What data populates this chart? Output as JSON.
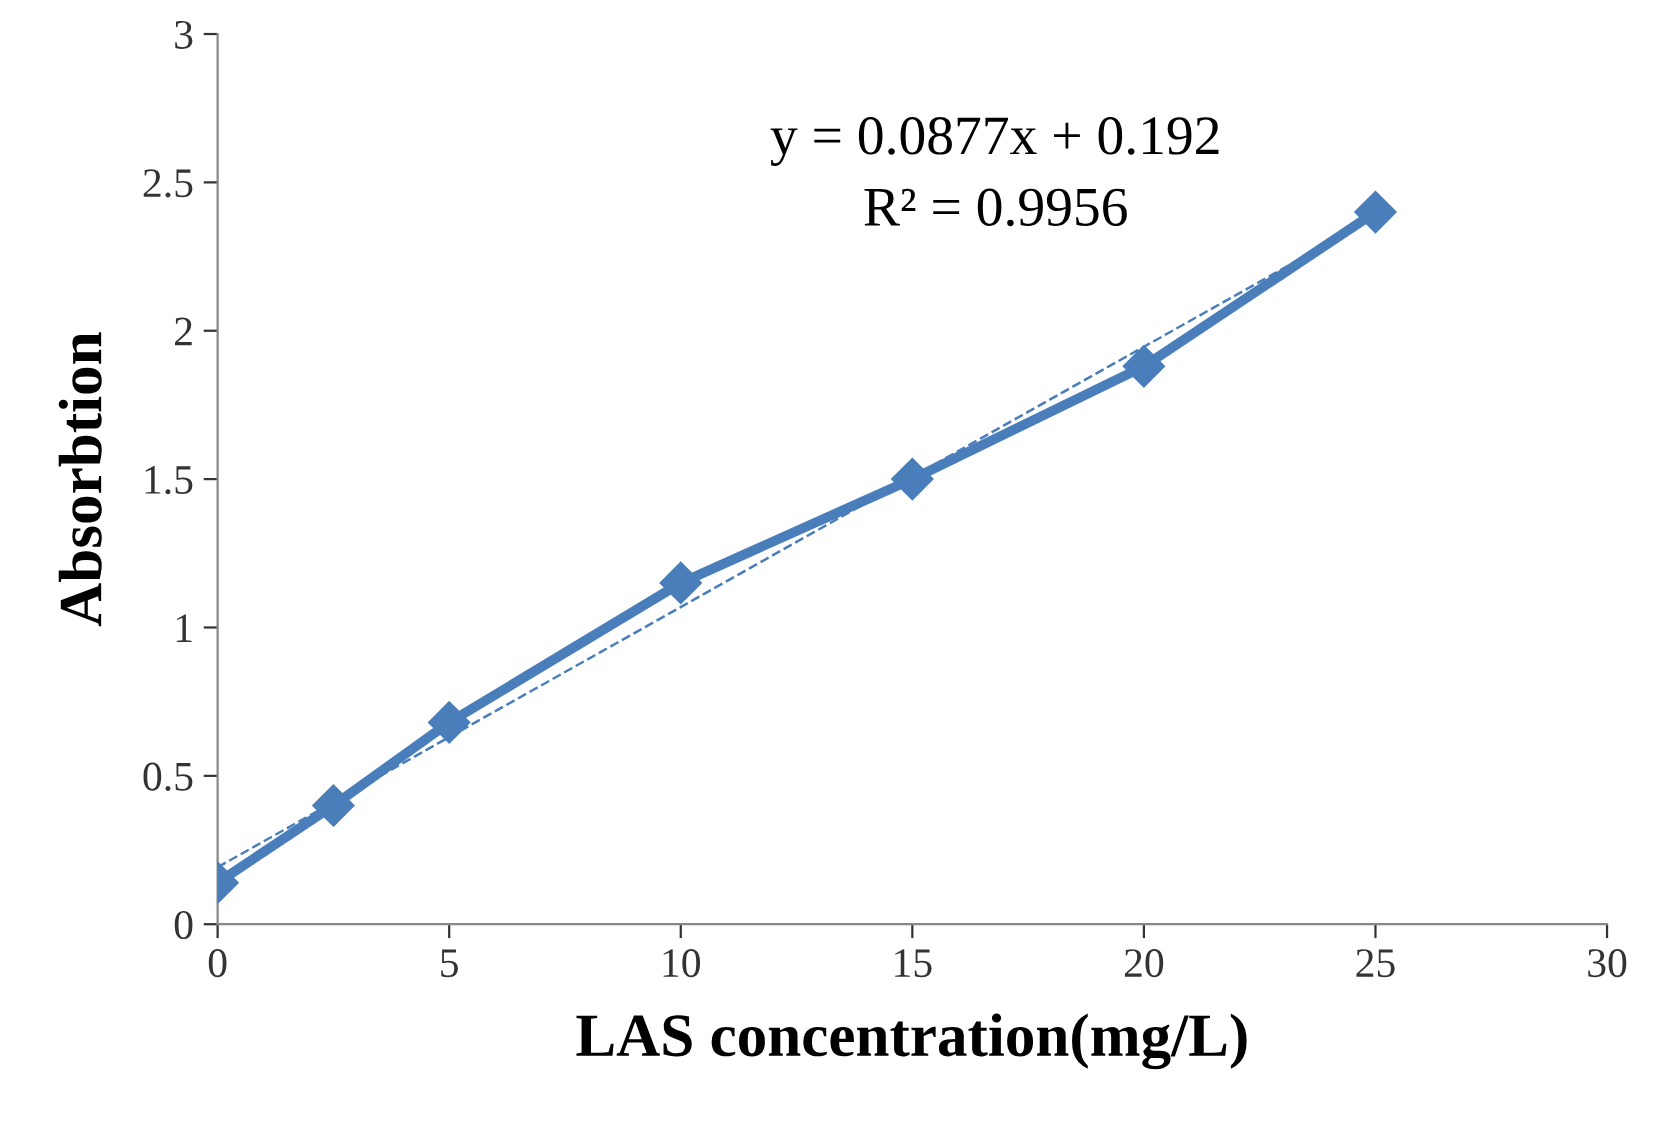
{
  "chart_data": {
    "type": "line",
    "xlabel": "LAS concentration(mg/L)",
    "ylabel": "Absorbtion",
    "x": [
      0,
      2.5,
      5,
      10,
      15,
      20,
      25
    ],
    "series": [
      {
        "color": "#4a7ebb",
        "values": [
          0.14,
          0.4,
          0.68,
          1.15,
          1.5,
          1.88,
          2.4
        ],
        "marker": "diamond",
        "line_style": "solid"
      },
      {
        "type": "line",
        "color": "#4a7ebb",
        "x": [
          0,
          25
        ],
        "values": [
          0.192,
          2.3845
        ],
        "marker": "none",
        "line_style": "dashed"
      }
    ],
    "xlim": [
      0,
      30
    ],
    "xticks": [
      0,
      5,
      10,
      15,
      20,
      25,
      30
    ],
    "ylim": [
      0,
      3
    ],
    "yticks": [
      0,
      0.5,
      1,
      1.5,
      2,
      2.5,
      3
    ],
    "grid": false,
    "legend": false,
    "annotations": [
      "y = 0.0877x + 0.192",
      "R² = 0.9956"
    ]
  }
}
